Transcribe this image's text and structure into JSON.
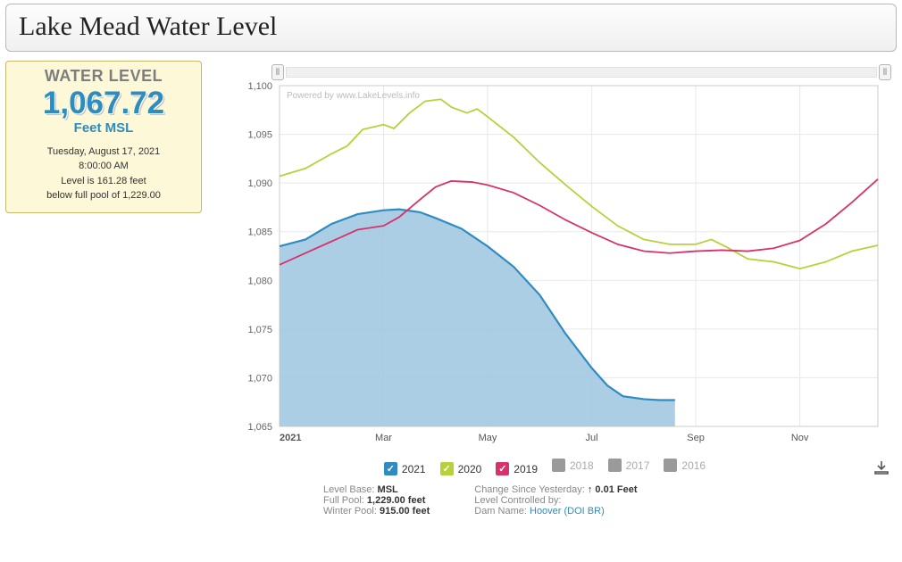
{
  "title": "Lake Mead Water Level",
  "card": {
    "header": "WATER LEVEL",
    "value": "1,067.72",
    "unit": "Feet MSL",
    "timestamp_line1": "Tuesday, August 17, 2021",
    "timestamp_line2": "8:00:00 AM",
    "below_line1": "Level is 161.28 feet",
    "below_line2": "below full pool of 1,229.00"
  },
  "chart": {
    "type": "area+line",
    "watermark": "Powered by www.LakeLevels.info",
    "ylim": [
      1065,
      1100
    ],
    "yticks": [
      1065,
      1070,
      1075,
      1080,
      1085,
      1090,
      1095,
      1100
    ],
    "xlabel_year": "2021",
    "xticks": [
      "2021",
      "Mar",
      "May",
      "Jul",
      "Sep",
      "Nov"
    ],
    "grid_color": "#e8e8e8",
    "axis_color": "#cccccc",
    "background_color": "#ffffff",
    "series": {
      "s2021": {
        "label": "2021",
        "color": "#2f8cc0",
        "fill": "#9cc6e0",
        "active": true,
        "checked": true,
        "data": [
          [
            0,
            1083.5
          ],
          [
            0.5,
            1084.2
          ],
          [
            1,
            1085.8
          ],
          [
            1.5,
            1086.8
          ],
          [
            2,
            1087.2
          ],
          [
            2.3,
            1087.3
          ],
          [
            2.7,
            1087.0
          ],
          [
            3,
            1086.4
          ],
          [
            3.5,
            1085.3
          ],
          [
            4,
            1083.5
          ],
          [
            4.5,
            1081.4
          ],
          [
            5,
            1078.5
          ],
          [
            5.5,
            1074.5
          ],
          [
            6,
            1071.0
          ],
          [
            6.3,
            1069.2
          ],
          [
            6.6,
            1068.1
          ],
          [
            7,
            1067.8
          ],
          [
            7.3,
            1067.7
          ],
          [
            7.6,
            1067.7
          ]
        ]
      },
      "s2020": {
        "label": "2020",
        "color": "#b7d13a",
        "fill": null,
        "active": true,
        "checked": true,
        "data": [
          [
            0,
            1090.7
          ],
          [
            0.5,
            1091.5
          ],
          [
            1,
            1093.0
          ],
          [
            1.3,
            1093.8
          ],
          [
            1.6,
            1095.5
          ],
          [
            2,
            1096.0
          ],
          [
            2.2,
            1095.6
          ],
          [
            2.5,
            1097.2
          ],
          [
            2.8,
            1098.4
          ],
          [
            3.1,
            1098.6
          ],
          [
            3.3,
            1097.8
          ],
          [
            3.6,
            1097.2
          ],
          [
            3.8,
            1097.6
          ],
          [
            4,
            1096.8
          ],
          [
            4.5,
            1094.7
          ],
          [
            5,
            1092.1
          ],
          [
            5.5,
            1089.8
          ],
          [
            6,
            1087.6
          ],
          [
            6.5,
            1085.6
          ],
          [
            7,
            1084.2
          ],
          [
            7.5,
            1083.7
          ],
          [
            8,
            1083.7
          ],
          [
            8.3,
            1084.2
          ],
          [
            8.6,
            1083.4
          ],
          [
            9,
            1082.2
          ],
          [
            9.5,
            1081.9
          ],
          [
            10,
            1081.2
          ],
          [
            10.5,
            1081.9
          ],
          [
            11,
            1083.0
          ],
          [
            11.5,
            1083.6
          ]
        ]
      },
      "s2019": {
        "label": "2019",
        "color": "#d6336c",
        "fill": null,
        "active": true,
        "checked": true,
        "data": [
          [
            0,
            1081.6
          ],
          [
            0.5,
            1082.8
          ],
          [
            1,
            1084.0
          ],
          [
            1.5,
            1085.2
          ],
          [
            2,
            1085.6
          ],
          [
            2.3,
            1086.5
          ],
          [
            2.7,
            1088.3
          ],
          [
            3,
            1089.6
          ],
          [
            3.3,
            1090.2
          ],
          [
            3.7,
            1090.1
          ],
          [
            4,
            1089.8
          ],
          [
            4.5,
            1089.0
          ],
          [
            5,
            1087.7
          ],
          [
            5.5,
            1086.2
          ],
          [
            6,
            1084.9
          ],
          [
            6.5,
            1083.7
          ],
          [
            7,
            1083.0
          ],
          [
            7.5,
            1082.8
          ],
          [
            8,
            1083.0
          ],
          [
            8.5,
            1083.1
          ],
          [
            9,
            1083.0
          ],
          [
            9.5,
            1083.3
          ],
          [
            10,
            1084.1
          ],
          [
            10.5,
            1085.8
          ],
          [
            11,
            1088.0
          ],
          [
            11.5,
            1090.4
          ]
        ]
      },
      "s2018": {
        "label": "2018",
        "color": "#9a9a9a",
        "active": false,
        "checked": false
      },
      "s2017": {
        "label": "2017",
        "color": "#9a9a9a",
        "active": false,
        "checked": false
      },
      "s2016": {
        "label": "2016",
        "color": "#9a9a9a",
        "active": false,
        "checked": false
      }
    }
  },
  "footer": {
    "left": {
      "level_base_label": "Level Base:",
      "level_base": "MSL",
      "full_pool_label": "Full Pool:",
      "full_pool": "1,229.00 feet",
      "winter_pool_label": "Winter Pool:",
      "winter_pool": "915.00 feet"
    },
    "right": {
      "change_label": "Change Since Yesterday:",
      "change": "↑ 0.01 Feet",
      "controlled_label": "Level Controlled by:",
      "controlled": "",
      "dam_label": "Dam Name:",
      "dam": "Hoover (DOI BR)"
    }
  }
}
